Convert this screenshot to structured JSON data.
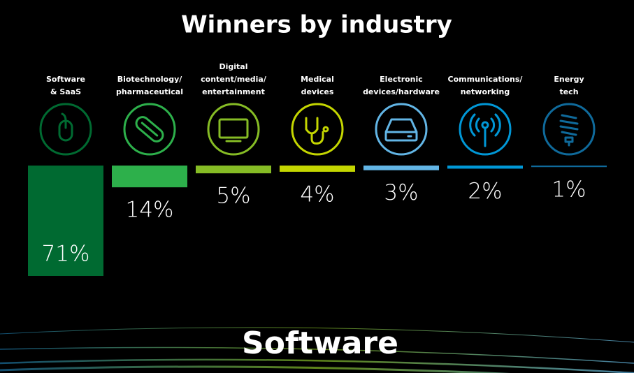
{
  "chart_data": {
    "type": "bar",
    "title": "Winners by industry",
    "subtitle": "Software",
    "categories": [
      "Software\n& SaaS",
      "Biotechnology/\npharmaceutical",
      "Digital\ncontent/media/\nentertainment",
      "Medical\ndevices",
      "Electronic\ndevices/hardware",
      "Communications/\nnetworking",
      "Energy\ntech"
    ],
    "values": [
      71,
      14,
      5,
      4,
      3,
      2,
      1
    ],
    "value_labels": [
      "71%",
      "14%",
      "5%",
      "4%",
      "3%",
      "2%",
      "1%"
    ],
    "colors": [
      "#006a31",
      "#2db04b",
      "#86bc25",
      "#c4d600",
      "#62b5e5",
      "#0097d6",
      "#0f6a9b"
    ]
  }
}
